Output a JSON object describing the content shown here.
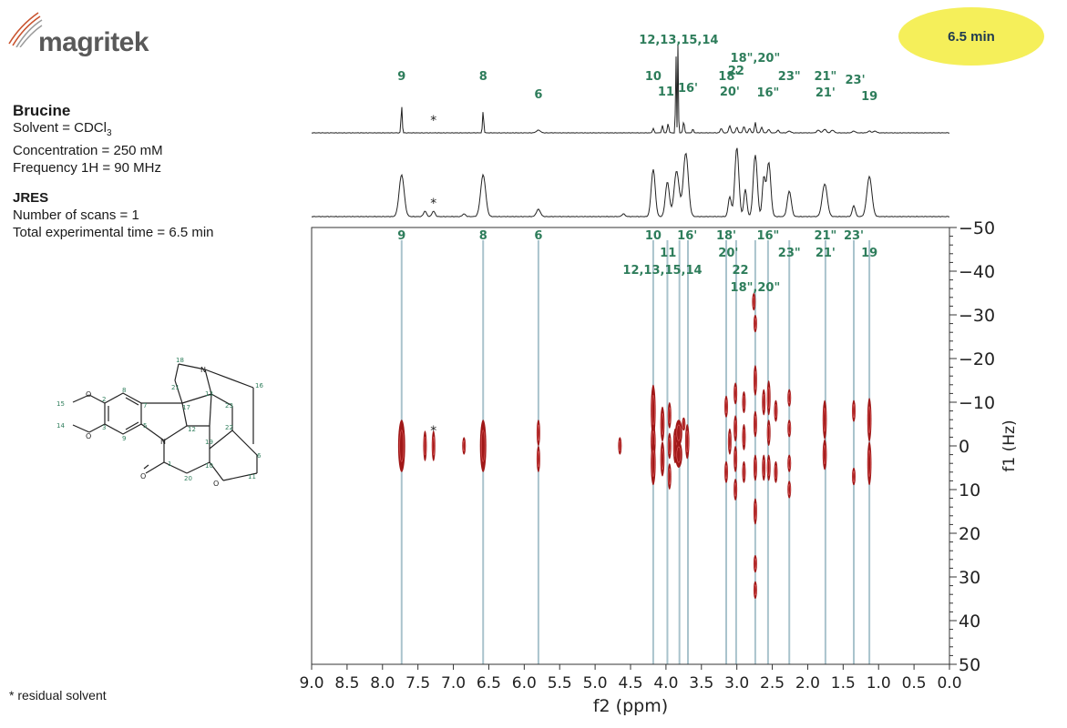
{
  "header": {
    "logo_text": "magritek",
    "badge": "6.5 min"
  },
  "sample": {
    "title": "Brucine",
    "solvent_prefix": "Solvent = CDCl",
    "solvent_sub": "3",
    "concentration": "Concentration = 250 mM",
    "frequency": "Frequency 1H = 90 MHz"
  },
  "experiment": {
    "title": "JRES",
    "scans": "Number of scans = 1",
    "time": "Total experimental time = 6.5 min"
  },
  "footnote": "* residual solvent",
  "colors": {
    "label": "#2e7d5b",
    "guide": "#a9c3cc",
    "contour": "#a01818",
    "trace": "#222222",
    "badge": "#f5ef5a"
  },
  "chart_data": {
    "type": "heatmap",
    "xlabel": "f2 (ppm)",
    "ylabel": "f1 (Hz)",
    "xlim": [
      9.0,
      0.0
    ],
    "ylim": [
      -50,
      50
    ],
    "x_ticks": [
      "9.0",
      "8.5",
      "8.0",
      "7.5",
      "7.0",
      "6.5",
      "6.0",
      "5.5",
      "5.0",
      "4.5",
      "4.0",
      "3.5",
      "3.0",
      "2.5",
      "2.0",
      "1.5",
      "1.0",
      "0.5",
      "0.0"
    ],
    "y_ticks": [
      "-50",
      "-40",
      "-30",
      "-20",
      "-10",
      "0",
      "10",
      "20",
      "30",
      "40",
      "50"
    ],
    "guide_ppm": [
      7.73,
      6.58,
      5.8,
      4.18,
      3.98,
      3.81,
      3.69,
      3.15,
      3.01,
      2.74,
      2.56,
      2.26,
      1.75,
      1.35,
      1.13
    ],
    "top_labels": [
      {
        "text": "9",
        "ppm": 7.73,
        "row": 0
      },
      {
        "text": "8",
        "ppm": 6.58,
        "row": 0
      },
      {
        "text": "6",
        "ppm": 5.8,
        "row": 1
      },
      {
        "text": "12,13,15,14",
        "ppm": 3.82,
        "row": -2
      },
      {
        "text": "18\",20\"",
        "ppm": 2.74,
        "row": -1
      },
      {
        "text": "22",
        "ppm": 3.01,
        "row": -0.3
      },
      {
        "text": "10",
        "ppm": 4.18,
        "row": 0
      },
      {
        "text": "18'",
        "ppm": 3.12,
        "row": 0
      },
      {
        "text": "23\"",
        "ppm": 2.26,
        "row": 0
      },
      {
        "text": "21\"",
        "ppm": 1.75,
        "row": 0
      },
      {
        "text": "23'",
        "ppm": 1.33,
        "row": 0.2
      },
      {
        "text": "11",
        "ppm": 4.0,
        "row": 0.85
      },
      {
        "text": "16'",
        "ppm": 3.69,
        "row": 0.65
      },
      {
        "text": "20'",
        "ppm": 3.1,
        "row": 0.85
      },
      {
        "text": "16\"",
        "ppm": 2.56,
        "row": 0.9
      },
      {
        "text": "21'",
        "ppm": 1.75,
        "row": 0.9
      },
      {
        "text": "19",
        "ppm": 1.13,
        "row": 1.1
      }
    ],
    "plot_labels": [
      {
        "text": "9",
        "ppm": 7.73,
        "row": 0
      },
      {
        "text": "8",
        "ppm": 6.58,
        "row": 0
      },
      {
        "text": "6",
        "ppm": 5.8,
        "row": 0
      },
      {
        "text": "10",
        "ppm": 4.18,
        "row": 0
      },
      {
        "text": "16'",
        "ppm": 3.7,
        "row": 0
      },
      {
        "text": "18'",
        "ppm": 3.15,
        "row": 0
      },
      {
        "text": "16\"",
        "ppm": 2.56,
        "row": 0
      },
      {
        "text": "21\"",
        "ppm": 1.75,
        "row": 0
      },
      {
        "text": "23'",
        "ppm": 1.35,
        "row": 0
      },
      {
        "text": "11",
        "ppm": 3.97,
        "row": 1
      },
      {
        "text": "20'",
        "ppm": 3.12,
        "row": 1
      },
      {
        "text": "23\"",
        "ppm": 2.26,
        "row": 1
      },
      {
        "text": "21'",
        "ppm": 1.75,
        "row": 1
      },
      {
        "text": "19",
        "ppm": 1.13,
        "row": 1
      },
      {
        "text": "12,13,15,14",
        "ppm": 4.05,
        "row": 2
      },
      {
        "text": "22",
        "ppm": 2.95,
        "row": 2
      },
      {
        "text": "18\",20\"",
        "ppm": 2.74,
        "row": 3
      }
    ],
    "asterisk_ppm": 7.28,
    "peaks": [
      {
        "ppm": 7.73,
        "hz": 0,
        "w": 0.05,
        "h": 6,
        "r": 1
      },
      {
        "ppm": 7.4,
        "hz": 0,
        "w": 0.025,
        "h": 3.5
      },
      {
        "ppm": 7.28,
        "hz": 0,
        "w": 0.025,
        "h": 3.5
      },
      {
        "ppm": 6.85,
        "hz": 0,
        "w": 0.015,
        "h": 2
      },
      {
        "ppm": 6.58,
        "hz": 0,
        "w": 0.045,
        "h": 6,
        "r": 1
      },
      {
        "ppm": 5.8,
        "hz": -3,
        "w": 0.015,
        "h": 3
      },
      {
        "ppm": 5.8,
        "hz": 3,
        "w": 0.015,
        "h": 3
      },
      {
        "ppm": 4.65,
        "hz": 0,
        "w": 0.02,
        "h": 2
      },
      {
        "ppm": 4.18,
        "hz": -8,
        "w": 0.035,
        "h": 6
      },
      {
        "ppm": 4.18,
        "hz": -1,
        "w": 0.035,
        "h": 4
      },
      {
        "ppm": 4.18,
        "hz": 4,
        "w": 0.035,
        "h": 5
      },
      {
        "ppm": 4.05,
        "hz": -5,
        "w": 0.03,
        "h": 4
      },
      {
        "ppm": 4.05,
        "hz": 3,
        "w": 0.03,
        "h": 4
      },
      {
        "ppm": 3.95,
        "hz": -7,
        "w": 0.025,
        "h": 3
      },
      {
        "ppm": 3.95,
        "hz": 0,
        "w": 0.025,
        "h": 3
      },
      {
        "ppm": 3.95,
        "hz": 7,
        "w": 0.025,
        "h": 3
      },
      {
        "ppm": 3.87,
        "hz": 0,
        "w": 0.03,
        "h": 4
      },
      {
        "ppm": 3.82,
        "hz": -3,
        "w": 0.05,
        "h": 3
      },
      {
        "ppm": 3.82,
        "hz": 2,
        "w": 0.05,
        "h": 3
      },
      {
        "ppm": 3.7,
        "hz": -1,
        "w": 0.03,
        "h": 4
      },
      {
        "ppm": 3.75,
        "hz": -5,
        "w": 0.015,
        "h": 1.5
      },
      {
        "ppm": 3.15,
        "hz": -9,
        "w": 0.02,
        "h": 2.5
      },
      {
        "ppm": 3.1,
        "hz": -1,
        "w": 0.02,
        "h": 3
      },
      {
        "ppm": 3.15,
        "hz": 6,
        "w": 0.02,
        "h": 2.5
      },
      {
        "ppm": 3.02,
        "hz": -12,
        "w": 0.02,
        "h": 2.5
      },
      {
        "ppm": 3.02,
        "hz": -4,
        "w": 0.02,
        "h": 3
      },
      {
        "ppm": 3.02,
        "hz": 3,
        "w": 0.02,
        "h": 3
      },
      {
        "ppm": 3.02,
        "hz": 10,
        "w": 0.02,
        "h": 2.5
      },
      {
        "ppm": 2.9,
        "hz": -10,
        "w": 0.018,
        "h": 2.5
      },
      {
        "ppm": 2.9,
        "hz": -2,
        "w": 0.018,
        "h": 3
      },
      {
        "ppm": 2.9,
        "hz": 6,
        "w": 0.018,
        "h": 2.5
      },
      {
        "ppm": 2.76,
        "hz": -33,
        "w": 0.02,
        "h": 2
      },
      {
        "ppm": 2.74,
        "hz": -28,
        "w": 0.02,
        "h": 2
      },
      {
        "ppm": 2.74,
        "hz": -15,
        "w": 0.025,
        "h": 3.5
      },
      {
        "ppm": 2.74,
        "hz": -5,
        "w": 0.025,
        "h": 3
      },
      {
        "ppm": 2.74,
        "hz": 5,
        "w": 0.025,
        "h": 3
      },
      {
        "ppm": 2.74,
        "hz": 15,
        "w": 0.025,
        "h": 3
      },
      {
        "ppm": 2.74,
        "hz": 27,
        "w": 0.02,
        "h": 2
      },
      {
        "ppm": 2.74,
        "hz": 33,
        "w": 0.02,
        "h": 2
      },
      {
        "ppm": 2.62,
        "hz": -10,
        "w": 0.02,
        "h": 3
      },
      {
        "ppm": 2.62,
        "hz": 5,
        "w": 0.02,
        "h": 3
      },
      {
        "ppm": 2.55,
        "hz": -11,
        "w": 0.025,
        "h": 4
      },
      {
        "ppm": 2.55,
        "hz": -3,
        "w": 0.025,
        "h": 3
      },
      {
        "ppm": 2.55,
        "hz": 5,
        "w": 0.025,
        "h": 3
      },
      {
        "ppm": 2.45,
        "hz": -8,
        "w": 0.02,
        "h": 2.5
      },
      {
        "ppm": 2.45,
        "hz": 6,
        "w": 0.02,
        "h": 2.5
      },
      {
        "ppm": 2.26,
        "hz": -11,
        "w": 0.015,
        "h": 2
      },
      {
        "ppm": 2.26,
        "hz": -4,
        "w": 0.015,
        "h": 2
      },
      {
        "ppm": 2.26,
        "hz": 4,
        "w": 0.015,
        "h": 2
      },
      {
        "ppm": 2.26,
        "hz": 10,
        "w": 0.015,
        "h": 2
      },
      {
        "ppm": 1.76,
        "hz": -6,
        "w": 0.03,
        "h": 4.5
      },
      {
        "ppm": 1.76,
        "hz": 2,
        "w": 0.03,
        "h": 3.5
      },
      {
        "ppm": 1.35,
        "hz": -8,
        "w": 0.015,
        "h": 2.5
      },
      {
        "ppm": 1.35,
        "hz": 7,
        "w": 0.015,
        "h": 2
      },
      {
        "ppm": 1.13,
        "hz": -6,
        "w": 0.03,
        "h": 5
      },
      {
        "ppm": 1.13,
        "hz": 4,
        "w": 0.03,
        "h": 5
      }
    ]
  },
  "molecule_labels": [
    "18",
    "21",
    "N",
    "16",
    "13",
    "8",
    "15",
    "O",
    "2",
    "7",
    "17",
    "23",
    "1",
    "22",
    "12",
    "14",
    "O",
    "3",
    "4",
    "5",
    "9",
    "N",
    "19",
    "6",
    "10",
    "O",
    "20",
    "11",
    "O",
    "1"
  ]
}
